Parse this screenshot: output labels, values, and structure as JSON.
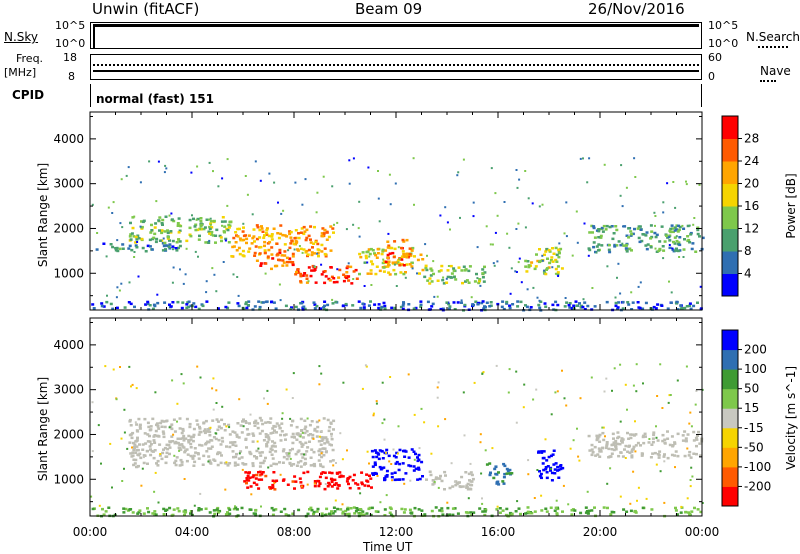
{
  "header": {
    "station": "Unwin (fitACF)",
    "beam": "Beam 09",
    "date": "26/Nov/2016"
  },
  "nsky_panel": {
    "left_label": "N.Sky",
    "left_ticks": [
      "10^5",
      "10^0"
    ],
    "right_ticks": [
      "10^5",
      "10^0"
    ],
    "right_label": "N.Search"
  },
  "freq_panel": {
    "left_label_1": "Freq.",
    "left_label_2": "[MHz]",
    "left_ticks": [
      "18",
      "8"
    ],
    "right_ticks": [
      "60",
      "0"
    ],
    "right_label": "Nave"
  },
  "cpid_panel": {
    "label": "CPID",
    "value": "normal (fast) 151"
  },
  "colors": {
    "scale": [
      "#0000ff",
      "#2f6fb2",
      "#4aa06e",
      "#7ec84b",
      "#f5d400",
      "#ffa500",
      "#ff5a00",
      "#ff0000"
    ],
    "velocity_scale": [
      "#ff0000",
      "#ff5a00",
      "#ffa500",
      "#f5d400",
      "#c8c8c0",
      "#7ec84b",
      "#3f9b33",
      "#2f6fb2",
      "#0000ff"
    ],
    "ground_scatter": "#bebeb4"
  },
  "chart_data": [
    {
      "type": "heatmap",
      "name": "power",
      "ylabel": "Slant Range [km]",
      "xlabel": "",
      "x_ticks": [
        "00:00",
        "04:00",
        "08:00",
        "12:00",
        "16:00",
        "20:00",
        "00:00"
      ],
      "y_ticks": [
        1000,
        2000,
        3000,
        4000
      ],
      "ylim": [
        180,
        4600
      ],
      "colorbar": {
        "label": "Power [dB]",
        "ticks": [
          "28",
          "24",
          "20",
          "16",
          "12",
          "8",
          "4"
        ]
      },
      "echo_bands": [
        {
          "t": [
            0.2,
            3.5
          ],
          "range": [
            1500,
            1700
          ],
          "value": 8
        },
        {
          "t": [
            1.5,
            5.5
          ],
          "range": [
            1700,
            2300
          ],
          "value": 13
        },
        {
          "t": [
            5.5,
            9.5
          ],
          "range": [
            1400,
            2100
          ],
          "value": 22
        },
        {
          "t": [
            6.5,
            8.0
          ],
          "range": [
            1100,
            1500
          ],
          "value": 26
        },
        {
          "t": [
            8.0,
            10.5
          ],
          "range": [
            800,
            1200
          ],
          "value": 28
        },
        {
          "t": [
            10.5,
            13.0
          ],
          "range": [
            1000,
            1600
          ],
          "value": 18
        },
        {
          "t": [
            11.5,
            12.5
          ],
          "range": [
            1200,
            1800
          ],
          "value": 25
        },
        {
          "t": [
            13.0,
            15.5
          ],
          "range": [
            800,
            1200
          ],
          "value": 14
        },
        {
          "t": [
            17.0,
            18.5
          ],
          "range": [
            1000,
            1600
          ],
          "value": 16
        },
        {
          "t": [
            19.5,
            24.0
          ],
          "range": [
            1500,
            2100
          ],
          "value": 10
        },
        {
          "t": [
            0.0,
            24.0
          ],
          "range": [
            200,
            400
          ],
          "value": 6
        }
      ]
    },
    {
      "type": "heatmap",
      "name": "velocity",
      "ylabel": "Slant Range [km]",
      "xlabel": "Time UT",
      "x_ticks": [
        "00:00",
        "04:00",
        "08:00",
        "12:00",
        "16:00",
        "20:00",
        "00:00"
      ],
      "y_ticks": [
        1000,
        2000,
        3000,
        4000
      ],
      "ylim": [
        180,
        4600
      ],
      "colorbar": {
        "label": "Velocity [m s^-1]",
        "ticks": [
          "200",
          "100",
          "50",
          "15",
          "-15",
          "-50",
          "-100",
          "-200"
        ]
      },
      "echo_bands": [
        {
          "t": [
            1.5,
            9.5
          ],
          "range": [
            1300,
            2400
          ],
          "value": 0
        },
        {
          "t": [
            6.0,
            8.0
          ],
          "range": [
            800,
            1200
          ],
          "value": -160
        },
        {
          "t": [
            8.0,
            11.0
          ],
          "range": [
            800,
            1200
          ],
          "value": -200
        },
        {
          "t": [
            11.0,
            13.0
          ],
          "range": [
            1000,
            1700
          ],
          "value": 200
        },
        {
          "t": [
            13.0,
            15.0
          ],
          "range": [
            800,
            1200
          ],
          "value": 0
        },
        {
          "t": [
            15.5,
            16.5
          ],
          "range": [
            900,
            1400
          ],
          "value": 80
        },
        {
          "t": [
            17.5,
            18.5
          ],
          "range": [
            1000,
            1700
          ],
          "value": 200
        },
        {
          "t": [
            19.5,
            24.0
          ],
          "range": [
            1500,
            2100
          ],
          "value": 0
        },
        {
          "t": [
            0.0,
            24.0
          ],
          "range": [
            200,
            400
          ],
          "value": 30
        }
      ]
    }
  ]
}
